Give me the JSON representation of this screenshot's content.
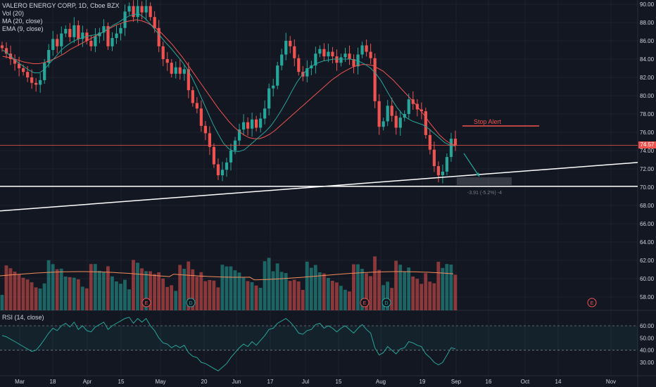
{
  "header": {
    "symbol_line": "VALERO ENERGY CORP, 1D, Cboe BZX",
    "vol_label": "Vol (20)",
    "ma_label": "MA (20, close)",
    "ema_label": "EMA (9, close)"
  },
  "rsi_title": "RSI (14, close)",
  "last_price": "74.57",
  "annotations": {
    "stop_alert": "Stop Alert",
    "target_box_text": "-3.91 (-5.2%) -4"
  },
  "colors": {
    "background": "#131722",
    "up": "#26a69a",
    "down": "#ef5350",
    "ema": "#26a69a",
    "ma": "#ef5350",
    "trendline": "#ffffff",
    "rsi": "#26a69a",
    "axis_text": "#d1d4dc"
  },
  "chart_data": [
    {
      "type": "candlestick",
      "title": "VALERO ENERGY CORP, 1D, Cboe BZX",
      "y_ticks": [
        "90.00",
        "88.00",
        "86.00",
        "84.00",
        "82.00",
        "80.00",
        "78.00",
        "76.00",
        "74.00",
        "72.00",
        "70.00",
        "68.00",
        "66.00",
        "64.00",
        "62.00",
        "60.00",
        "58.00"
      ],
      "ylim": [
        57,
        90.5
      ],
      "x_ticks": [
        "Mar",
        "18",
        "Apr",
        "15",
        "May",
        "20",
        "Jun",
        "17",
        "Jul",
        "15",
        "Aug",
        "19",
        "Sep",
        "16",
        "Oct",
        "14",
        "Nov"
      ],
      "close_approx": [
        85.2,
        84.6,
        84.0,
        83.5,
        83.0,
        82.6,
        82.0,
        81.4,
        81.2,
        81.7,
        83.6,
        85.0,
        86.2,
        85.4,
        86.8,
        87.3,
        86.4,
        87.7,
        86.2,
        86.9,
        86.0,
        85.4,
        86.5,
        86.9,
        87.6,
        85.4,
        86.3,
        86.8,
        87.4,
        89.2,
        89.8,
        88.6,
        89.8,
        89.1,
        89.8,
        88.6,
        87.4,
        85.4,
        84.0,
        83.6,
        82.4,
        83.1,
        82.4,
        82.9,
        80.6,
        79.2,
        78.6,
        76.7,
        75.9,
        74.4,
        72.5,
        71.3,
        71.9,
        72.7,
        74.0,
        75.1,
        76.3,
        77.1,
        76.4,
        77.4,
        76.5,
        77.5,
        78.6,
        80.8,
        81.1,
        83.3,
        84.5,
        86.0,
        85.4,
        84.1,
        82.6,
        82.1,
        83.0,
        83.3,
        84.6,
        85.1,
        84.3,
        84.8,
        84.3,
        83.6,
        84.2,
        84.6,
        84.0,
        83.2,
        84.5,
        85.5,
        84.8,
        84.1,
        79.4,
        76.6,
        77.2,
        78.9,
        77.8,
        76.5,
        77.6,
        78.0,
        79.6,
        79.1,
        78.5,
        78.3,
        75.7,
        74.1,
        72.3,
        71.3,
        71.7,
        73.3,
        75.3,
        74.6
      ],
      "ema_9": [
        85.0,
        84.6,
        84.1,
        83.6,
        83.2,
        82.8,
        82.5,
        82.5,
        82.9,
        83.6,
        84.2,
        84.9,
        85.4,
        85.8,
        86.1,
        86.3,
        86.5,
        86.6,
        86.7,
        86.9,
        87.3,
        87.7,
        88.0,
        88.4,
        88.7,
        88.9,
        88.9,
        88.5,
        87.9,
        87.2,
        86.5,
        85.8,
        85.2,
        84.5,
        83.8,
        83.0,
        82.0,
        80.8,
        79.5,
        78.2,
        76.9,
        75.8,
        74.8,
        74.2,
        73.9,
        73.9,
        74.1,
        74.6,
        75.1,
        75.6,
        76.1,
        76.7,
        77.5,
        78.4,
        79.4,
        80.5,
        81.5,
        82.3,
        82.9,
        83.3,
        83.6,
        83.8,
        83.9,
        84.0,
        84.0,
        84.0,
        84.0,
        83.9,
        83.7,
        83.4,
        83.0,
        82.4,
        81.6,
        80.6,
        79.6,
        78.7,
        78.0,
        77.5,
        77.2,
        77.0,
        76.8,
        76.4,
        75.9,
        75.4,
        74.9,
        74.6,
        74.5
      ],
      "ma_20": [
        84.3,
        84.2,
        84.0,
        83.9,
        83.7,
        83.6,
        83.5,
        83.5,
        83.6,
        83.8,
        84.0,
        84.3,
        84.6,
        85.0,
        85.3,
        85.6,
        85.9,
        86.2,
        86.5,
        86.8,
        87.1,
        87.4,
        87.7,
        87.9,
        88.1,
        88.2,
        88.3,
        88.2,
        88.0,
        87.7,
        87.3,
        86.8,
        86.2,
        85.6,
        84.9,
        84.2,
        83.4,
        82.6,
        81.8,
        81.0,
        80.2,
        79.4,
        78.6,
        77.9,
        77.2,
        76.6,
        76.1,
        75.7,
        75.4,
        75.3,
        75.3,
        75.5,
        75.8,
        76.2,
        76.7,
        77.2,
        77.7,
        78.2,
        78.7,
        79.2,
        79.7,
        80.2,
        80.7,
        81.2,
        81.7,
        82.1,
        82.5,
        82.8,
        83.1,
        83.3,
        83.4,
        83.4,
        83.3,
        83.0,
        82.7,
        82.2,
        81.7,
        81.1,
        80.5,
        79.9,
        79.3,
        78.6,
        77.9,
        77.1,
        76.4,
        75.7,
        75.2,
        74.8,
        74.6
      ],
      "volume_bars": 108,
      "annotations": [
        "Stop Alert",
        "-3.91 (-5.2%) -4"
      ],
      "last_price": "74.57"
    },
    {
      "type": "line",
      "title": "RSI (14, close)",
      "y_ticks": [
        "60.00",
        "50.00",
        "40.00",
        "30.00"
      ],
      "band": [
        40,
        60
      ],
      "ylim": [
        25,
        67
      ],
      "values": [
        52,
        51,
        49,
        47,
        45,
        43,
        41,
        39,
        40,
        44,
        49,
        54,
        58,
        56,
        60,
        62,
        59,
        63,
        57,
        60,
        56,
        55,
        59,
        61,
        63,
        57,
        60,
        62,
        64,
        66,
        67,
        62,
        66,
        63,
        66,
        60,
        56,
        50,
        46,
        45,
        42,
        44,
        42,
        44,
        38,
        35,
        34,
        30,
        29,
        27,
        25,
        23,
        26,
        29,
        34,
        38,
        42,
        45,
        43,
        47,
        44,
        48,
        52,
        57,
        58,
        62,
        64,
        66,
        63,
        59,
        54,
        53,
        56,
        57,
        61,
        62,
        58,
        60,
        58,
        55,
        58,
        60,
        57,
        54,
        58,
        61,
        57,
        54,
        42,
        36,
        38,
        43,
        40,
        37,
        41,
        42,
        47,
        46,
        44,
        43,
        37,
        34,
        30,
        28,
        30,
        36,
        42,
        41
      ]
    }
  ]
}
